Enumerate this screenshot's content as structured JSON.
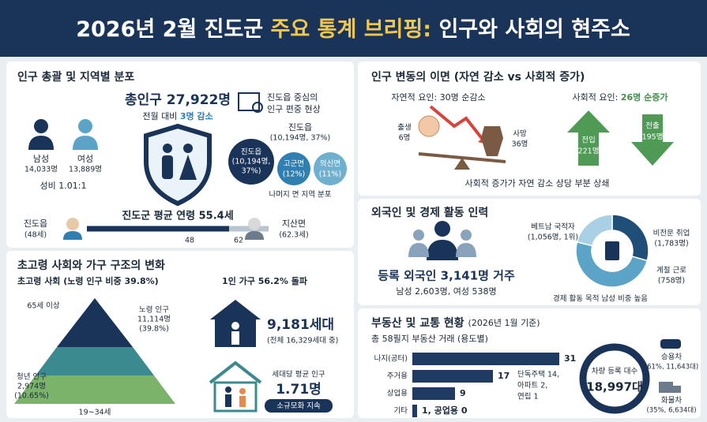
{
  "header": {
    "title": [
      "2026년 2월 진도군",
      "주요 통계 브리핑:",
      "인구와 사회의 현주소"
    ]
  },
  "population": {
    "title": "인구 총괄 및 지역별 분포",
    "total": "총인구 27,922명",
    "change": [
      "전월 대비",
      "3명 감소"
    ],
    "male": [
      "남성",
      "14,033명"
    ],
    "female": [
      "여성",
      "13,889명"
    ],
    "sex_ratio": "성비 1.01:1",
    "note": [
      "진도읍 중심의",
      "인구 편중 현상"
    ],
    "callout": [
      "진도읍",
      "(10,194명, 37%)"
    ],
    "bubbles": [
      [
        "진도읍",
        "(10,194명,",
        "37%)"
      ],
      [
        "고군면",
        "(12%)"
      ],
      [
        "의신면",
        "(11%)"
      ]
    ],
    "rest": "나머지 면 지역 분포",
    "age": {
      "title": "진도군 평균 연령 55.4세",
      "youngest": [
        "진도읍",
        "(48세)"
      ],
      "oldest": [
        "지산면",
        "(62.3세)"
      ],
      "ticks": [
        "48",
        "62"
      ]
    }
  },
  "aging": {
    "title": "초고령 사회와 가구 구조의 변화",
    "subtitle": "초고령 사회 (노령 인구 비중 39.8%)",
    "top_label": "65세 이상",
    "elderly": [
      "노령 인구",
      "11,114명",
      "(39.8%)"
    ],
    "youth": [
      "청년 인구",
      "2,974명",
      "(10.65%)"
    ],
    "bottom_label": "19~34세",
    "single": {
      "title": "1인 가구 56.2% 돌파",
      "value": "9,181세대",
      "detail": "(전체 16,329세대 중)",
      "avg_label": "세대당 평균 인구",
      "avg_value": "1.71명",
      "tag": "소규모화 지속"
    }
  },
  "change": {
    "title": "인구 변동의 이면 (자연 감소 vs 사회적 증가)",
    "natural": "자연적 요인: 30명 순감소",
    "births": [
      "출생",
      "6명"
    ],
    "deaths": [
      "사망",
      "36명"
    ],
    "social": [
      "사회적 요인:",
      "26명 순증가"
    ],
    "moved_in": [
      "전입",
      "221명"
    ],
    "moved_out": [
      "전출",
      "195명"
    ],
    "note": "사회적 증가가 자연 감소 상당 부분 상쇄"
  },
  "foreign": {
    "title": "외국인 및 경제 활동 인력",
    "registered": "등록 외국인 3,141명 거주",
    "detail": "남성 2,603명, 여성 538명",
    "segments": [
      {
        "name": "베트남 국적자",
        "label": "(1,056명, 1위)",
        "value": 1056,
        "color": "#1f4e79"
      },
      {
        "name": "비전문 취업",
        "label": "(1,783명)",
        "value": 1783,
        "color": "#5ba3c7"
      },
      {
        "name": "계절 근로",
        "label": "(758명)",
        "value": 758,
        "color": "#a9d0e4"
      }
    ],
    "note": "경제 활동 목적 남성 비중 높음"
  },
  "realestate": {
    "title": [
      "부동산 및 교통 현황",
      "(2026년 1월 기준)"
    ],
    "subtitle": "총 58필지 부동산 거래 (용도별)",
    "categories": [
      "나지(공터)",
      "주거용",
      "상업용",
      "기타"
    ],
    "values": [
      31,
      17,
      9,
      1
    ],
    "value_labels": [
      "31",
      "17",
      "9",
      "1, 공업용 0"
    ],
    "color": "#1f3b63",
    "residential_detail": [
      "단독주택 14,",
      "아파트 2,",
      "연립 1"
    ],
    "vehicles": {
      "label": "차량 등록 대수",
      "total": "18,997대",
      "cars": [
        "승용차",
        "(61%, 11,643대)"
      ],
      "trucks": [
        "화물차",
        "(35%, 6,634대)"
      ]
    }
  }
}
